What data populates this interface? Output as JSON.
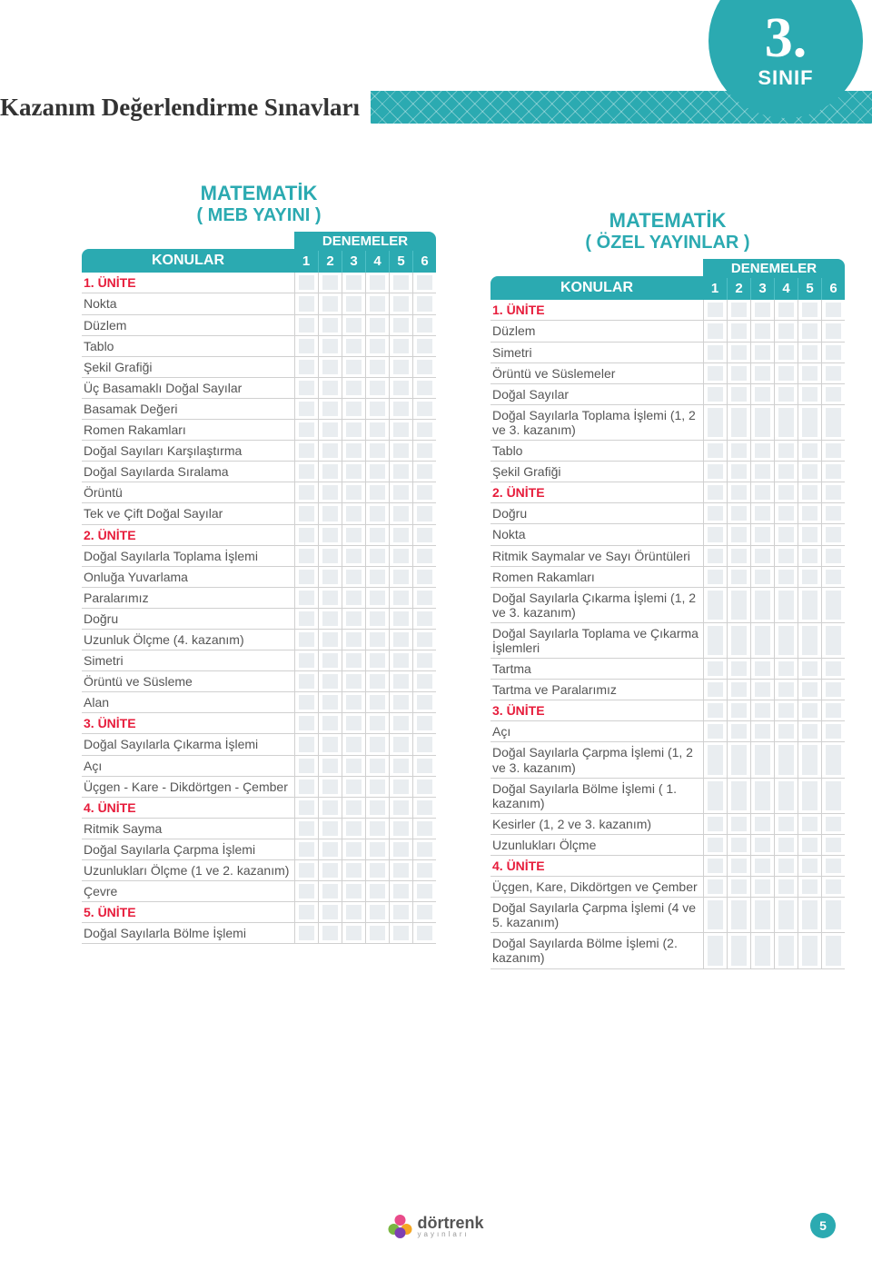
{
  "page": {
    "title": "Kazanım Değerlendirme Sınavları",
    "grade_number": "3.",
    "grade_label": "SINIF",
    "page_number": "5",
    "brand": "dörtrenk",
    "brand_sub": "yayınları"
  },
  "colors": {
    "teal": "#2baab1",
    "red": "#e71c3b",
    "grey_text": "#555555",
    "row_border": "#d0d0d0",
    "cell_fill": "#e9edf0"
  },
  "denemeler_label": "DENEMELER",
  "konular_label": "KONULAR",
  "column_numbers": [
    "1",
    "2",
    "3",
    "4",
    "5",
    "6"
  ],
  "left_table": {
    "subject": "MATEMATİK",
    "sub": "( MEB YAYINI )",
    "rows": [
      {
        "label": "1. ÜNİTE",
        "unit": true
      },
      {
        "label": "Nokta"
      },
      {
        "label": "Düzlem"
      },
      {
        "label": "Tablo"
      },
      {
        "label": "Şekil Grafiği"
      },
      {
        "label": "Üç Basamaklı Doğal Sayılar"
      },
      {
        "label": "Basamak Değeri"
      },
      {
        "label": "Romen Rakamları"
      },
      {
        "label": "Doğal Sayıları Karşılaştırma"
      },
      {
        "label": "Doğal Sayılarda Sıralama"
      },
      {
        "label": "Örüntü"
      },
      {
        "label": "Tek ve Çift Doğal Sayılar"
      },
      {
        "label": "2. ÜNİTE",
        "unit": true
      },
      {
        "label": "Doğal Sayılarla Toplama İşlemi"
      },
      {
        "label": "Onluğa Yuvarlama"
      },
      {
        "label": "Paralarımız"
      },
      {
        "label": "Doğru"
      },
      {
        "label": "Uzunluk Ölçme (4. kazanım)"
      },
      {
        "label": "Simetri"
      },
      {
        "label": "Örüntü ve Süsleme"
      },
      {
        "label": "Alan"
      },
      {
        "label": "3. ÜNİTE",
        "unit": true
      },
      {
        "label": "Doğal Sayılarla Çıkarma İşlemi"
      },
      {
        "label": "Açı"
      },
      {
        "label": "Üçgen - Kare - Dikdörtgen - Çember"
      },
      {
        "label": "4. ÜNİTE",
        "unit": true
      },
      {
        "label": "Ritmik Sayma"
      },
      {
        "label": "Doğal Sayılarla Çarpma İşlemi"
      },
      {
        "label": "Uzunlukları Ölçme (1 ve 2. kazanım)"
      },
      {
        "label": "Çevre"
      },
      {
        "label": "5. ÜNİTE",
        "unit": true
      },
      {
        "label": "Doğal Sayılarla Bölme İşlemi"
      }
    ]
  },
  "right_table": {
    "subject": "MATEMATİK",
    "sub": "( ÖZEL YAYINLAR )",
    "rows": [
      {
        "label": "1. ÜNİTE",
        "unit": true
      },
      {
        "label": "Düzlem"
      },
      {
        "label": "Simetri"
      },
      {
        "label": "Örüntü ve Süslemeler"
      },
      {
        "label": "Doğal Sayılar"
      },
      {
        "label": "Doğal Sayılarla Toplama İşlemi (1, 2 ve 3. kazanım)"
      },
      {
        "label": "Tablo"
      },
      {
        "label": "Şekil Grafiği"
      },
      {
        "label": "2. ÜNİTE",
        "unit": true
      },
      {
        "label": "Doğru"
      },
      {
        "label": "Nokta"
      },
      {
        "label": "Ritmik Saymalar ve Sayı Örüntüleri"
      },
      {
        "label": "Romen Rakamları"
      },
      {
        "label": "Doğal Sayılarla Çıkarma İşlemi (1, 2 ve 3. kazanım)"
      },
      {
        "label": "Doğal Sayılarla Toplama ve Çıkarma İşlemleri"
      },
      {
        "label": "Tartma"
      },
      {
        "label": "Tartma ve Paralarımız"
      },
      {
        "label": "3. ÜNİTE",
        "unit": true
      },
      {
        "label": "Açı"
      },
      {
        "label": "Doğal Sayılarla Çarpma İşlemi (1, 2 ve 3. kazanım)"
      },
      {
        "label": "Doğal Sayılarla Bölme İşlemi ( 1. kazanım)"
      },
      {
        "label": "Kesirler (1, 2 ve 3. kazanım)"
      },
      {
        "label": "Uzunlukları Ölçme"
      },
      {
        "label": "4. ÜNİTE",
        "unit": true
      },
      {
        "label": "Üçgen, Kare, Dikdörtgen ve Çember"
      },
      {
        "label": "Doğal Sayılarla Çarpma İşlemi (4 ve 5. kazanım)"
      },
      {
        "label": "Doğal Sayılarda Bölme İşlemi (2. kazanım)"
      }
    ]
  }
}
